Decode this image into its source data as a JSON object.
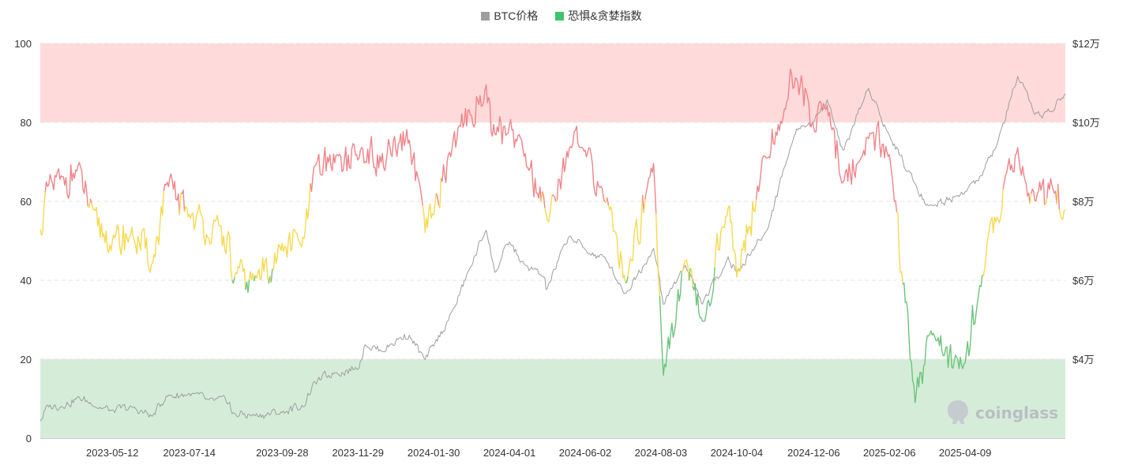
{
  "legend": {
    "btc_label": "BTC价格",
    "fg_label": "恐惧&贪婪指数",
    "btc_color": "#9e9e9e",
    "fg_color": "#3ec46d"
  },
  "watermark": "coinglass",
  "chart_data": {
    "type": "line",
    "title": "",
    "xlabel": "",
    "ylabel": "",
    "y_left": {
      "ylim": [
        0,
        100
      ],
      "ticks": [
        "0",
        "20",
        "40",
        "60",
        "80",
        "100"
      ]
    },
    "y_right": {
      "ylim_usd": [
        20000,
        120000
      ],
      "ticks": [
        {
          "value": 40000,
          "label": "$4万"
        },
        {
          "value": 60000,
          "label": "$6万"
        },
        {
          "value": 80000,
          "label": "$8万"
        },
        {
          "value": 100000,
          "label": "$10万"
        },
        {
          "value": 120000,
          "label": "$12万"
        }
      ]
    },
    "x_ticks": [
      "2023-05-12",
      "2023-07-14",
      "2023-09-28",
      "2023-11-29",
      "2024-01-30",
      "2024-04-01",
      "2024-06-02",
      "2024-08-03",
      "2024-10-04",
      "2024-12-06",
      "2025-02-06",
      "2025-04-09"
    ],
    "x_range": [
      "2023-03-14",
      "2025-06-30"
    ],
    "grid": true,
    "bands": [
      {
        "from": 80,
        "to": 100,
        "color": "#ffdada"
      },
      {
        "from": 0,
        "to": 20,
        "color": "#d5edd8"
      }
    ],
    "fg_colors": {
      "greed": "#f0848a",
      "neutral": "#f7d94e",
      "fear": "#6cc47c"
    },
    "series": [
      {
        "name": "BTC价格",
        "axis": "right",
        "points": [
          [
            "2023-03-14",
            24500
          ],
          [
            "2023-03-20",
            28000
          ],
          [
            "2023-04-01",
            28300
          ],
          [
            "2023-04-14",
            30200
          ],
          [
            "2023-04-26",
            28700
          ],
          [
            "2023-05-12",
            26800
          ],
          [
            "2023-05-28",
            27700
          ],
          [
            "2023-06-14",
            25500
          ],
          [
            "2023-06-25",
            30600
          ],
          [
            "2023-07-14",
            31200
          ],
          [
            "2023-07-30",
            29400
          ],
          [
            "2023-08-16",
            29100
          ],
          [
            "2023-08-18",
            26100
          ],
          [
            "2023-09-05",
            25800
          ],
          [
            "2023-09-28",
            26500
          ],
          [
            "2023-10-16",
            28400
          ],
          [
            "2023-10-24",
            33900
          ],
          [
            "2023-11-10",
            36700
          ],
          [
            "2023-11-29",
            37800
          ],
          [
            "2023-12-05",
            44000
          ],
          [
            "2023-12-18",
            42100
          ],
          [
            "2024-01-02",
            45300
          ],
          [
            "2024-01-10",
            46100
          ],
          [
            "2024-01-23",
            39600
          ],
          [
            "2024-01-30",
            43300
          ],
          [
            "2024-02-14",
            51800
          ],
          [
            "2024-02-28",
            62500
          ],
          [
            "2024-03-13",
            73100
          ],
          [
            "2024-03-20",
            61900
          ],
          [
            "2024-04-01",
            69600
          ],
          [
            "2024-04-13",
            63800
          ],
          [
            "2024-04-30",
            60600
          ],
          [
            "2024-05-01",
            57300
          ],
          [
            "2024-05-20",
            71400
          ],
          [
            "2024-06-02",
            67700
          ],
          [
            "2024-06-20",
            64900
          ],
          [
            "2024-07-05",
            56600
          ],
          [
            "2024-07-28",
            68200
          ],
          [
            "2024-08-05",
            54000
          ],
          [
            "2024-08-23",
            64000
          ],
          [
            "2024-09-06",
            53900
          ],
          [
            "2024-09-27",
            65800
          ],
          [
            "2024-10-04",
            62100
          ],
          [
            "2024-10-29",
            72700
          ],
          [
            "2024-11-12",
            88700
          ],
          [
            "2024-11-22",
            98400
          ],
          [
            "2024-12-06",
            99800
          ],
          [
            "2024-12-17",
            106100
          ],
          [
            "2024-12-30",
            92600
          ],
          [
            "2025-01-20",
            109000
          ],
          [
            "2025-02-06",
            96600
          ],
          [
            "2025-02-27",
            84700
          ],
          [
            "2025-03-10",
            78600
          ],
          [
            "2025-04-09",
            82500
          ],
          [
            "2025-04-20",
            85200
          ],
          [
            "2025-05-05",
            94300
          ],
          [
            "2025-05-22",
            111600
          ],
          [
            "2025-06-05",
            101500
          ],
          [
            "2025-06-20",
            103200
          ],
          [
            "2025-06-30",
            107200
          ]
        ]
      },
      {
        "name": "恐惧&贪婪指数",
        "axis": "left",
        "points": [
          [
            "2023-03-14",
            52
          ],
          [
            "2023-03-20",
            63
          ],
          [
            "2023-04-01",
            65
          ],
          [
            "2023-04-14",
            68
          ],
          [
            "2023-04-26",
            56
          ],
          [
            "2023-05-12",
            49
          ],
          [
            "2023-05-28",
            52
          ],
          [
            "2023-06-14",
            44
          ],
          [
            "2023-06-25",
            64
          ],
          [
            "2023-07-14",
            57
          ],
          [
            "2023-07-30",
            52
          ],
          [
            "2023-08-16",
            50
          ],
          [
            "2023-08-18",
            40
          ],
          [
            "2023-09-05",
            40
          ],
          [
            "2023-09-28",
            48
          ],
          [
            "2023-10-16",
            50
          ],
          [
            "2023-10-24",
            67
          ],
          [
            "2023-11-10",
            71
          ],
          [
            "2023-11-29",
            71
          ],
          [
            "2023-12-05",
            72
          ],
          [
            "2023-12-18",
            70
          ],
          [
            "2024-01-02",
            73
          ],
          [
            "2024-01-10",
            76
          ],
          [
            "2024-01-23",
            52
          ],
          [
            "2024-01-30",
            57
          ],
          [
            "2024-02-14",
            74
          ],
          [
            "2024-02-28",
            82
          ],
          [
            "2024-03-13",
            88
          ],
          [
            "2024-03-20",
            76
          ],
          [
            "2024-04-01",
            80
          ],
          [
            "2024-04-13",
            72
          ],
          [
            "2024-04-30",
            59
          ],
          [
            "2024-05-01",
            56
          ],
          [
            "2024-05-20",
            74
          ],
          [
            "2024-06-02",
            72
          ],
          [
            "2024-06-20",
            60
          ],
          [
            "2024-07-05",
            40
          ],
          [
            "2024-07-28",
            70
          ],
          [
            "2024-08-05",
            17
          ],
          [
            "2024-08-23",
            45
          ],
          [
            "2024-09-06",
            28
          ],
          [
            "2024-09-27",
            60
          ],
          [
            "2024-10-04",
            42
          ],
          [
            "2024-10-29",
            72
          ],
          [
            "2024-11-12",
            84
          ],
          [
            "2024-11-22",
            92
          ],
          [
            "2024-12-06",
            80
          ],
          [
            "2024-12-17",
            84
          ],
          [
            "2024-12-30",
            65
          ],
          [
            "2025-01-20",
            76
          ],
          [
            "2025-02-06",
            73
          ],
          [
            "2025-02-27",
            10
          ],
          [
            "2025-03-10",
            25
          ],
          [
            "2025-04-09",
            18
          ],
          [
            "2025-04-20",
            38
          ],
          [
            "2025-05-05",
            56
          ],
          [
            "2025-05-22",
            72
          ],
          [
            "2025-06-05",
            60
          ],
          [
            "2025-06-20",
            64
          ],
          [
            "2025-06-30",
            58
          ]
        ]
      }
    ]
  }
}
